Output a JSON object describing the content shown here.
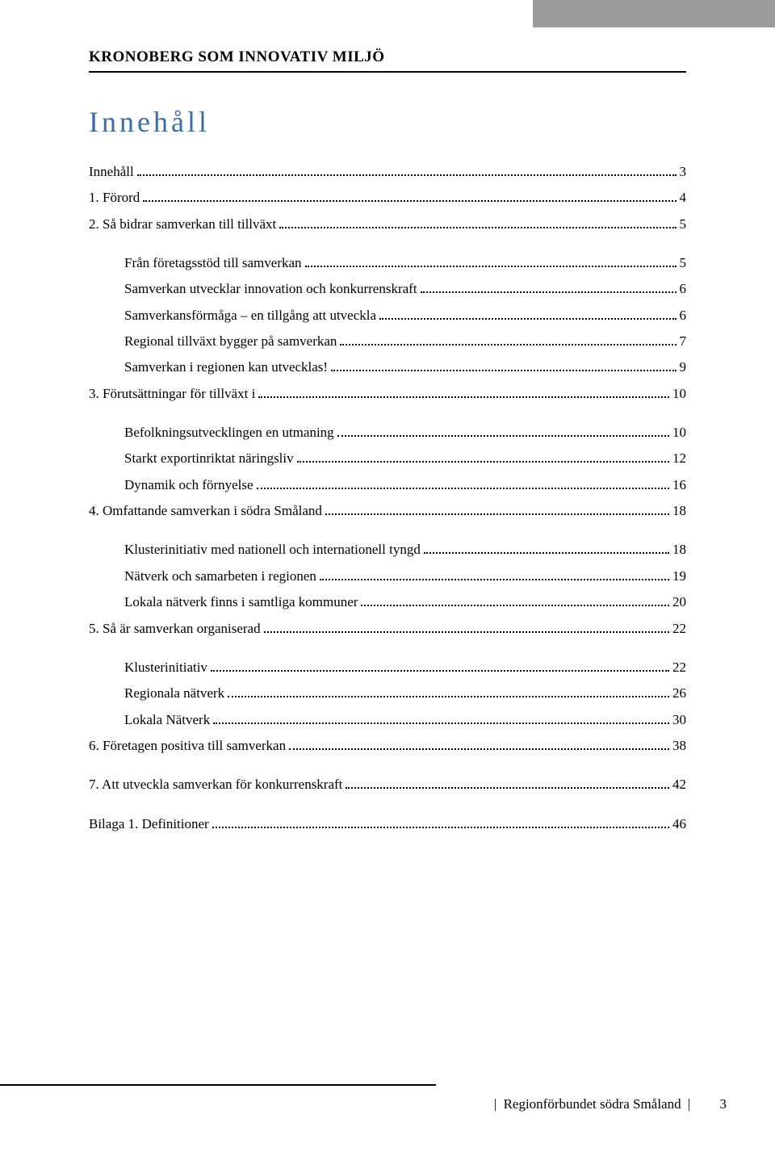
{
  "header": {
    "title": "KRONOBERG SOM INNOVATIV MILJÖ"
  },
  "toc": {
    "title": "Innehåll",
    "sections": [
      {
        "rows": [
          {
            "level": 0,
            "label": "Innehåll",
            "page": "3"
          },
          {
            "level": 0,
            "label": "1. Förord",
            "page": "4"
          },
          {
            "level": 0,
            "label": "2. Så bidrar samverkan till tillväxt",
            "page": "5"
          }
        ]
      },
      {
        "rows": [
          {
            "level": 1,
            "label": "Från företagsstöd till samverkan",
            "page": "5"
          },
          {
            "level": 1,
            "label": "Samverkan utvecklar innovation och konkurrenskraft",
            "page": "6"
          },
          {
            "level": 1,
            "label": "Samverkansförmåga – en tillgång att utveckla",
            "page": "6"
          },
          {
            "level": 1,
            "label": "Regional tillväxt bygger på samverkan",
            "page": "7"
          },
          {
            "level": 1,
            "label": "Samverkan i regionen kan utvecklas!",
            "page": "9"
          },
          {
            "level": 0,
            "label": "3. Förutsättningar för tillväxt i",
            "page": "10"
          }
        ]
      },
      {
        "rows": [
          {
            "level": 1,
            "label": "Befolkningsutvecklingen en utmaning",
            "page": "10"
          },
          {
            "level": 1,
            "label": "Starkt exportinriktat näringsliv",
            "page": "12"
          },
          {
            "level": 1,
            "label": "Dynamik och förnyelse",
            "page": "16"
          },
          {
            "level": 0,
            "label": "4. Omfattande samverkan i södra Småland",
            "page": "18"
          }
        ]
      },
      {
        "rows": [
          {
            "level": 1,
            "label": "Klusterinitiativ med nationell och internationell tyngd",
            "page": "18"
          },
          {
            "level": 1,
            "label": "Nätverk och samarbeten i regionen",
            "page": "19"
          },
          {
            "level": 1,
            "label": "Lokala nätverk finns i samtliga kommuner",
            "page": "20"
          },
          {
            "level": 0,
            "label": "5. Så är samverkan organiserad",
            "page": "22"
          }
        ]
      },
      {
        "rows": [
          {
            "level": 1,
            "label": "Klusterinitiativ",
            "page": "22"
          },
          {
            "level": 1,
            "label": "Regionala nätverk",
            "page": "26"
          },
          {
            "level": 1,
            "label": "Lokala Nätverk",
            "page": "30"
          },
          {
            "level": 0,
            "label": "6. Företagen positiva till samverkan",
            "page": "38"
          }
        ]
      },
      {
        "rows": [
          {
            "level": 0,
            "label": "7. Att utveckla samverkan för konkurrenskraft",
            "page": "42"
          }
        ]
      },
      {
        "rows": [
          {
            "level": 0,
            "label": "Bilaga 1. Definitioner",
            "page": "46"
          }
        ]
      }
    ]
  },
  "footer": {
    "org": "Regionförbundet södra Småland",
    "sep": "|",
    "page": "3"
  },
  "colors": {
    "title_color": "#3b6ea5",
    "header_box": "#9b9b9b",
    "text": "#000000",
    "background": "#ffffff"
  }
}
